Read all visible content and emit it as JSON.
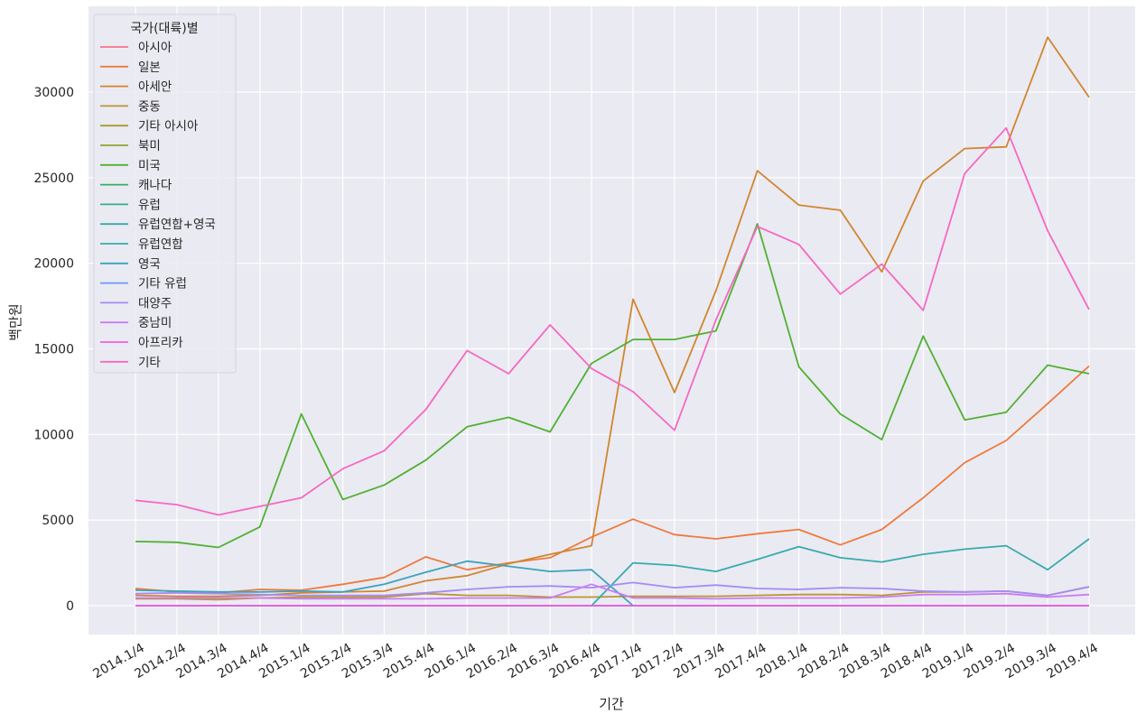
{
  "chart_data": {
    "type": "line",
    "xlabel": "기간",
    "ylabel": "백만원",
    "ylim": [
      -1700,
      34500
    ],
    "yticks": [
      0,
      5000,
      10000,
      15000,
      20000,
      25000,
      30000
    ],
    "grid": true,
    "legend": {
      "title": "국가(대륙)별",
      "placement": "top-left"
    },
    "categories": [
      "2014.1/4",
      "2014.2/4",
      "2014.3/4",
      "2014.4/4",
      "2015.1/4",
      "2015.2/4",
      "2015.3/4",
      "2015.4/4",
      "2016.1/4",
      "2016.2/4",
      "2016.3/4",
      "2016.4/4",
      "2017.1/4",
      "2017.2/4",
      "2017.3/4",
      "2017.4/4",
      "2018.1/4",
      "2018.2/4",
      "2018.3/4",
      "2018.4/4",
      "2019.1/4",
      "2019.2/4",
      "2019.3/4",
      "2019.4/4"
    ],
    "series": [
      {
        "name": "아시아",
        "color": "#f77189",
        "values": [
          0,
          0,
          0,
          0,
          0,
          0,
          0,
          0,
          0,
          0,
          0,
          0,
          0,
          0,
          0,
          0,
          0,
          0,
          0,
          0,
          0,
          0,
          0,
          0
        ]
      },
      {
        "name": "일본",
        "color": "#ee7a3d",
        "values": [
          1000,
          800,
          750,
          950,
          900,
          1250,
          1650,
          2850,
          2100,
          2500,
          2800,
          4000,
          5050,
          4150,
          3900,
          4200,
          4450,
          3550,
          4450,
          6300,
          8350,
          9650,
          11800,
          14000
        ]
      },
      {
        "name": "아세안",
        "color": "#d2852f",
        "values": [
          600,
          550,
          550,
          600,
          750,
          800,
          850,
          1450,
          1750,
          2450,
          3000,
          3500,
          17900,
          12450,
          18400,
          25400,
          23400,
          23100,
          19500,
          24800,
          26700,
          26800,
          33200,
          29700
        ]
      },
      {
        "name": "중동",
        "color": "#bb9433",
        "values": [
          400,
          400,
          350,
          450,
          500,
          500,
          500,
          700,
          600,
          600,
          500,
          500,
          550,
          550,
          550,
          600,
          650,
          650,
          600,
          800,
          800,
          850,
          600,
          1100
        ]
      },
      {
        "name": "기타 아시아",
        "color": "#a39b32",
        "values": [
          0,
          0,
          0,
          0,
          0,
          0,
          0,
          0,
          0,
          0,
          0,
          0,
          0,
          0,
          0,
          0,
          0,
          0,
          0,
          0,
          0,
          0,
          0,
          0
        ]
      },
      {
        "name": "북미",
        "color": "#8aa432",
        "values": [
          0,
          0,
          0,
          0,
          0,
          0,
          0,
          0,
          0,
          0,
          0,
          0,
          0,
          0,
          0,
          0,
          0,
          0,
          0,
          0,
          0,
          0,
          0,
          0
        ]
      },
      {
        "name": "미국",
        "color": "#50b131",
        "values": [
          3750,
          3700,
          3400,
          4600,
          11200,
          6200,
          7050,
          8500,
          10450,
          11000,
          10150,
          14150,
          15550,
          15550,
          16050,
          22300,
          13950,
          11200,
          9700,
          15750,
          10850,
          11300,
          14050,
          13550
        ]
      },
      {
        "name": "캐나다",
        "color": "#32b166",
        "values": [
          0,
          0,
          0,
          0,
          0,
          0,
          0,
          0,
          0,
          0,
          0,
          0,
          0,
          0,
          0,
          0,
          0,
          0,
          0,
          0,
          0,
          0,
          0,
          0
        ]
      },
      {
        "name": "유럽",
        "color": "#34ae91",
        "values": [
          0,
          0,
          0,
          0,
          0,
          0,
          0,
          0,
          0,
          0,
          0,
          0,
          0,
          0,
          0,
          0,
          0,
          0,
          0,
          0,
          0,
          0,
          0,
          0
        ]
      },
      {
        "name": "유럽연합+영국",
        "color": "#36ada4",
        "values": [
          0,
          0,
          0,
          0,
          0,
          0,
          0,
          0,
          0,
          0,
          0,
          0,
          0,
          0,
          0,
          0,
          0,
          0,
          0,
          0,
          0,
          0,
          0,
          0
        ]
      },
      {
        "name": "유럽연합",
        "color": "#38aaac",
        "values": [
          null,
          null,
          null,
          null,
          null,
          null,
          null,
          null,
          null,
          null,
          null,
          0,
          2500,
          2350,
          2000,
          2700,
          3450,
          2800,
          2550,
          3000,
          3300,
          3500,
          2100,
          3900
        ]
      },
      {
        "name": "영국",
        "color": "#3ba3bc",
        "values": [
          900,
          850,
          800,
          800,
          850,
          800,
          1250,
          1950,
          2600,
          2300,
          2000,
          2100,
          0,
          0,
          0,
          0,
          0,
          0,
          0,
          0,
          0,
          0,
          0,
          0
        ]
      },
      {
        "name": "기타 유럽",
        "color": "#6e9af4",
        "values": [
          0,
          0,
          0,
          0,
          0,
          0,
          0,
          0,
          0,
          0,
          0,
          0,
          0,
          0,
          0,
          0,
          0,
          0,
          0,
          0,
          0,
          0,
          0,
          0
        ]
      },
      {
        "name": "대양주",
        "color": "#a48cf4",
        "values": [
          700,
          750,
          700,
          650,
          600,
          600,
          600,
          750,
          950,
          1100,
          1150,
          1050,
          1350,
          1050,
          1200,
          1000,
          950,
          1050,
          1000,
          850,
          800,
          850,
          600,
          1100
        ]
      },
      {
        "name": "중남미",
        "color": "#cc7af4",
        "values": [
          450,
          450,
          450,
          450,
          400,
          400,
          400,
          400,
          450,
          450,
          450,
          1250,
          450,
          450,
          400,
          450,
          450,
          450,
          500,
          650,
          650,
          700,
          500,
          650
        ]
      },
      {
        "name": "아프리카",
        "color": "#f45cde",
        "values": [
          0,
          0,
          0,
          0,
          0,
          0,
          0,
          0,
          0,
          0,
          0,
          0,
          0,
          0,
          0,
          0,
          0,
          0,
          0,
          0,
          0,
          0,
          0,
          0
        ]
      },
      {
        "name": "기타",
        "color": "#f668c2",
        "values": [
          6150,
          5900,
          5300,
          5800,
          6300,
          8000,
          9050,
          11450,
          14900,
          13550,
          16400,
          13850,
          12500,
          10250,
          16700,
          22150,
          21100,
          18200,
          19950,
          17250,
          25250,
          27900,
          21900,
          17300
        ]
      }
    ]
  }
}
